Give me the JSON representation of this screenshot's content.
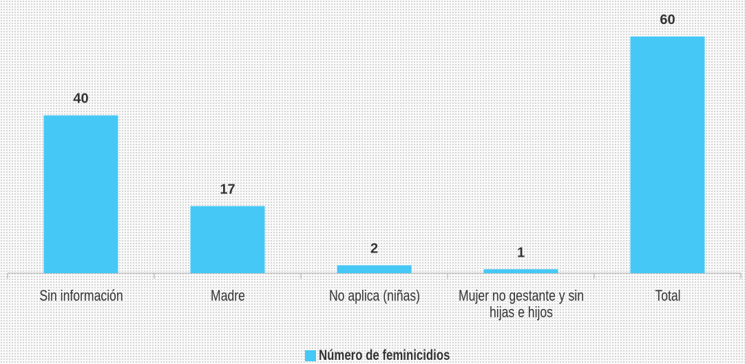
{
  "chart_data": {
    "type": "bar",
    "categories": [
      "Sin información",
      "Madre",
      "No aplica (niñas)",
      "Mujer no gestante y sin hijas e hijos",
      "Total"
    ],
    "series": [
      {
        "name": "Número de feminicidios",
        "color": "#45c8f5",
        "values": [
          40,
          17,
          2,
          1,
          60
        ]
      }
    ],
    "ylim": [
      0,
      60
    ]
  }
}
